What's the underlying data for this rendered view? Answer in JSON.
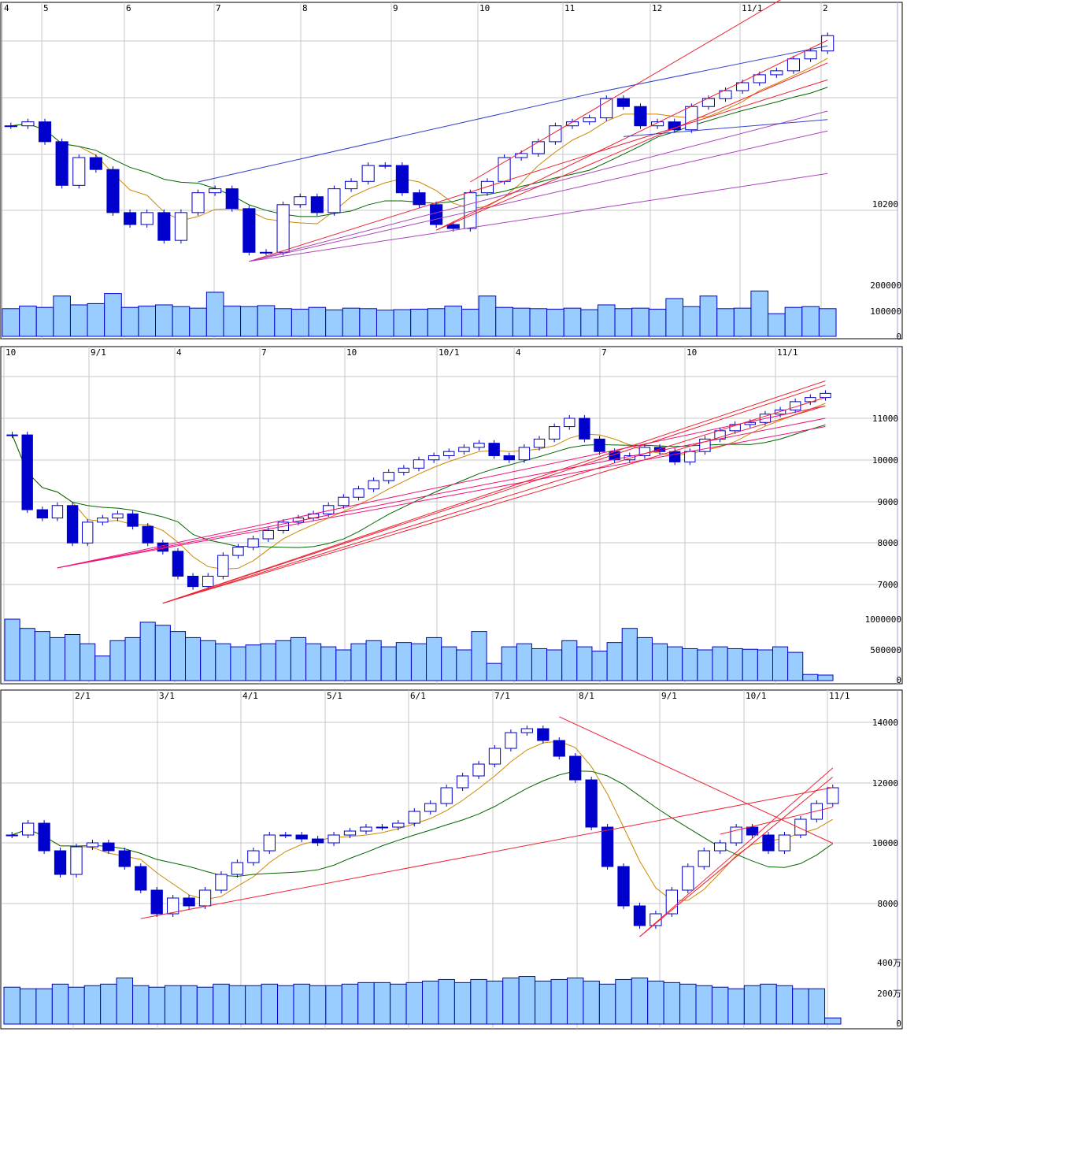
{
  "colors": {
    "up_fill": "#ffffff",
    "up_border": "#0000cc",
    "down": "#0000cc",
    "volume": "#99ccff",
    "volume_border": "#0000cc",
    "ma_short": "#cc8800",
    "ma_long": "#006600",
    "grid": "#c8c8c8",
    "axis_line": "#a0a0e0"
  },
  "chart_data": [
    {
      "type": "candlestick",
      "x_tick_labels": [
        "4",
        "5",
        "6",
        "7",
        "8",
        "9",
        "10",
        "11",
        "12",
        "11/1",
        "2"
      ],
      "price_tick_labels": [
        "10200"
      ],
      "volume_tick_labels": [
        "200000",
        "100000",
        "0"
      ],
      "closes": [
        10349,
        10356,
        10321,
        10244,
        10293,
        10272,
        10196,
        10175,
        10196,
        10147,
        10196,
        10231,
        10238,
        10203,
        10126,
        10126,
        10210,
        10224,
        10196,
        10238,
        10251,
        10279,
        10279,
        10231,
        10210,
        10175,
        10168,
        10231,
        10251,
        10293,
        10300,
        10321,
        10349,
        10356,
        10363,
        10397,
        10383,
        10349,
        10356,
        10342,
        10383,
        10397,
        10411,
        10425,
        10439,
        10446,
        10467,
        10481,
        10508
      ],
      "volumes": [
        110000,
        120000,
        115000,
        160000,
        125000,
        130000,
        170000,
        115000,
        120000,
        125000,
        118000,
        112000,
        175000,
        120000,
        118000,
        122000,
        110000,
        108000,
        115000,
        105000,
        112000,
        110000,
        104000,
        106000,
        108000,
        110000,
        120000,
        108000,
        160000,
        115000,
        112000,
        110000,
        108000,
        112000,
        106000,
        125000,
        110000,
        112000,
        108000,
        150000,
        118000,
        160000,
        110000,
        112000,
        180000,
        90000,
        115000,
        118000,
        110000
      ],
      "trend_lines": [
        {
          "color": "#ee2233",
          "from": [
            14,
            10110
          ],
          "to": [
            48,
            10430
          ]
        },
        {
          "color": "#aa44bb",
          "from": [
            14,
            10110
          ],
          "to": [
            48,
            10265
          ]
        },
        {
          "color": "#aa44bb",
          "from": [
            14,
            10110
          ],
          "to": [
            48,
            10375
          ]
        },
        {
          "color": "#aa44bb",
          "from": [
            14,
            10110
          ],
          "to": [
            48,
            10340
          ]
        },
        {
          "color": "#3344cc",
          "from": [
            11,
            10250
          ],
          "to": [
            34,
            10405
          ]
        },
        {
          "color": "#3344cc",
          "from": [
            34,
            10405
          ],
          "to": [
            48,
            10490
          ]
        },
        {
          "color": "#ee2233",
          "from": [
            25,
            10165
          ],
          "to": [
            48,
            10460
          ]
        },
        {
          "color": "#ee2233",
          "from": [
            25,
            10165
          ],
          "to": [
            48,
            10500
          ]
        },
        {
          "color": "#ee2233",
          "from": [
            27,
            10250
          ],
          "to": [
            48,
            10620
          ]
        },
        {
          "color": "#3344cc",
          "from": [
            36,
            10330
          ],
          "to": [
            48,
            10360
          ]
        }
      ]
    },
    {
      "type": "candlestick",
      "x_tick_labels": [
        "10",
        "9/1",
        "4",
        "7",
        "10",
        "10/1",
        "4",
        "7",
        "10",
        "11/1"
      ],
      "price_tick_labels": [
        "11000",
        "10000",
        "9000",
        "8000",
        "7000"
      ],
      "volume_tick_labels": [
        "1000000",
        "500000",
        "0"
      ],
      "closes": [
        10600,
        8800,
        8600,
        8900,
        8000,
        8500,
        8600,
        8700,
        8400,
        8000,
        7800,
        7200,
        6950,
        7200,
        7700,
        7900,
        8100,
        8300,
        8500,
        8600,
        8700,
        8900,
        9100,
        9300,
        9500,
        9700,
        9800,
        10000,
        10100,
        10200,
        10300,
        10400,
        10100,
        10000,
        10300,
        10500,
        10800,
        11000,
        10500,
        10200,
        10000,
        10100,
        10300,
        10200,
        9950,
        10200,
        10500,
        10700,
        10850,
        10900,
        11100,
        11200,
        11400,
        11500,
        11600
      ],
      "volumes": [
        1000000,
        850000,
        800000,
        700000,
        750000,
        600000,
        400000,
        650000,
        700000,
        950000,
        900000,
        800000,
        700000,
        650000,
        600000,
        550000,
        580000,
        600000,
        650000,
        700000,
        600000,
        550000,
        500000,
        600000,
        650000,
        550000,
        620000,
        600000,
        700000,
        550000,
        500000,
        800000,
        280000,
        550000,
        600000,
        520000,
        500000,
        650000,
        550000,
        480000,
        620000,
        850000,
        700000,
        600000,
        550000,
        520000,
        500000,
        550000,
        520000,
        510000,
        500000,
        550000,
        460000,
        100000,
        90000
      ],
      "trend_lines": [
        {
          "color": "#ee1177",
          "from": [
            3,
            7400
          ],
          "to": [
            54,
            11300
          ]
        },
        {
          "color": "#ee1177",
          "from": [
            3,
            7400
          ],
          "to": [
            54,
            11000
          ]
        },
        {
          "color": "#ee1177",
          "from": [
            3,
            7400
          ],
          "to": [
            54,
            10800
          ]
        },
        {
          "color": "#ee2233",
          "from": [
            10,
            6550
          ],
          "to": [
            54,
            11900
          ]
        },
        {
          "color": "#ee2233",
          "from": [
            10,
            6550
          ],
          "to": [
            54,
            11500
          ]
        },
        {
          "color": "#ee2233",
          "from": [
            10,
            6550
          ],
          "to": [
            54,
            11300
          ]
        },
        {
          "color": "#ee2233",
          "from": [
            10,
            6550
          ],
          "to": [
            54,
            11800
          ]
        }
      ]
    },
    {
      "type": "candlestick",
      "x_tick_labels": [
        "2/1",
        "3/1",
        "4/1",
        "5/1",
        "6/1",
        "7/1",
        "8/1",
        "9/1",
        "10/1",
        "11/1"
      ],
      "price_tick_labels": [
        "14000",
        "12000",
        "10000",
        "8000"
      ],
      "volume_tick_labels": [
        "400万",
        "200万",
        "0"
      ],
      "closes": [
        10274,
        10666,
        9751,
        8967,
        9882,
        10013,
        9751,
        9228,
        8444,
        7660,
        8183,
        7922,
        8444,
        8967,
        9359,
        9751,
        10274,
        10274,
        10143,
        10013,
        10274,
        10405,
        10536,
        10536,
        10666,
        11058,
        11320,
        11843,
        12235,
        12627,
        13150,
        13672,
        13803,
        13411,
        12888,
        12104,
        10536,
        9228,
        7922,
        7268,
        7660,
        8444,
        9228,
        9751,
        10013,
        10536,
        10274,
        9751,
        10274,
        10797,
        11320,
        11843
      ],
      "volumes": [
        2400000,
        2300000,
        2300000,
        2600000,
        2400000,
        2500000,
        2600000,
        3000000,
        2500000,
        2400000,
        2500000,
        2500000,
        2400000,
        2600000,
        2500000,
        2500000,
        2600000,
        2500000,
        2600000,
        2500000,
        2500000,
        2600000,
        2700000,
        2700000,
        2600000,
        2700000,
        2800000,
        2900000,
        2700000,
        2900000,
        2800000,
        3000000,
        3100000,
        2800000,
        2900000,
        3000000,
        2800000,
        2600000,
        2900000,
        3000000,
        2800000,
        2700000,
        2600000,
        2500000,
        2400000,
        2300000,
        2500000,
        2600000,
        2500000,
        2300000,
        2300000,
        400000
      ],
      "trend_lines": [
        {
          "color": "#ee2233",
          "from": [
            8,
            7500
          ],
          "to": [
            51,
            11850
          ]
        },
        {
          "color": "#ee2233",
          "from": [
            34,
            14200
          ],
          "to": [
            51,
            10000
          ]
        },
        {
          "color": "#ee2233",
          "from": [
            39,
            6900
          ],
          "to": [
            51,
            12500
          ]
        },
        {
          "color": "#ee2233",
          "from": [
            39,
            6900
          ],
          "to": [
            51,
            12200
          ]
        },
        {
          "color": "#ee2233",
          "from": [
            44,
            10300
          ],
          "to": [
            51,
            11200
          ]
        }
      ]
    }
  ]
}
